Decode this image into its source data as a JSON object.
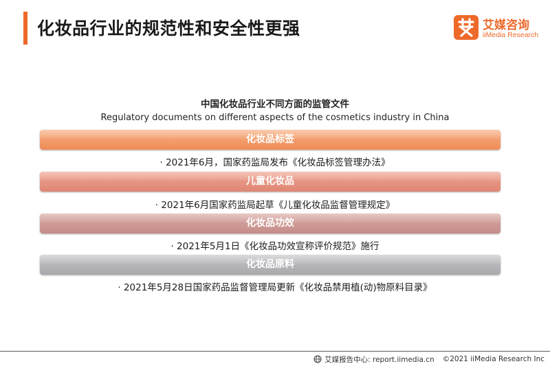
{
  "header": {
    "title": "化妆品行业的规范性和安全性更强"
  },
  "logo": {
    "icon": "ai-glyph-logo",
    "name_cn": "艾媒咨询",
    "name_en": "iiMedia Research"
  },
  "chart": {
    "title_cn": "中国化妆品行业不同方面的监管文件",
    "title_en": "Regulatory documents on different aspects of the cosmetics industry in China"
  },
  "categories": [
    {
      "label": "化妆品标签",
      "regulation": "· 2021年6月，国家药监局发布《化妆品标签管理办法》",
      "color": "#ef8b57"
    },
    {
      "label": "儿童化妆品",
      "regulation": "· 2021年6月国家药监局起草《儿童化妆品监督管理规定》",
      "color": "#df8573"
    },
    {
      "label": "化妆品功效",
      "regulation": "· 2021年5月1日《化妆品功效宣称评价规范》施行",
      "color": "#c58d89"
    },
    {
      "label": "化妆品原料",
      "regulation": "· 2021年5月28日国家药品监督管理局更新《化妆品禁用植(动)物原料目录》",
      "color": "#a8a8ad"
    }
  ],
  "footer": {
    "source": "艾媒报告中心: report.iimedia.cn",
    "copyright": "©2021  iiMedia Research  Inc"
  }
}
